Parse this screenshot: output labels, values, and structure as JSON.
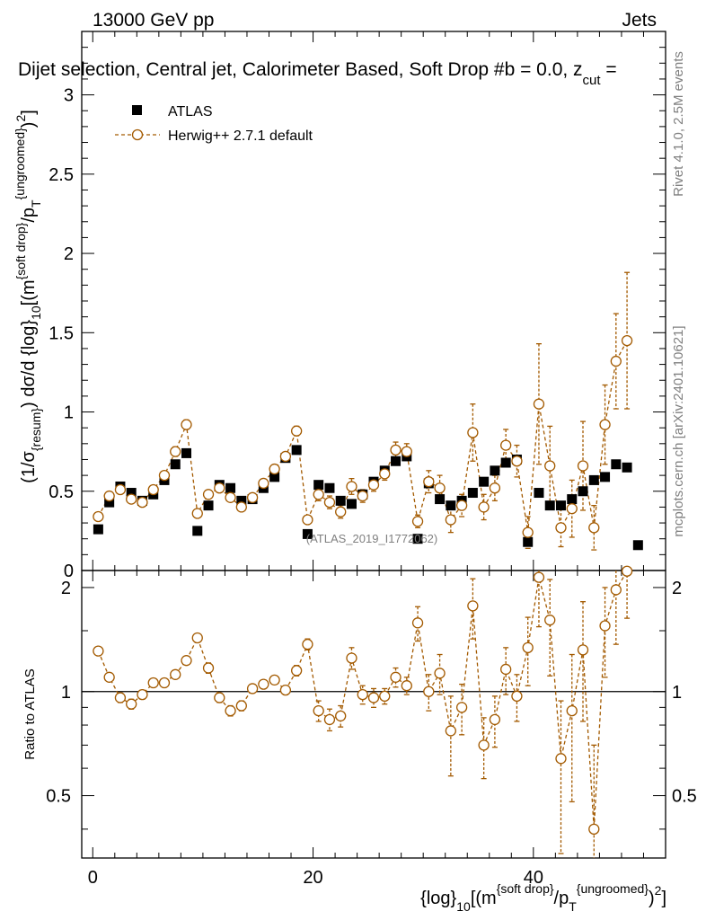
{
  "chart_data": {
    "type": "scatter",
    "header_left": "13000 GeV pp",
    "header_right": "Jets",
    "title": "Dijet selection, Central jet, Calorimeter Based, Soft Drop #b = 0.0, z",
    "title_sub": "cut",
    "title_tail": " =",
    "watermark": "(ATLAS_2019_I1772062)",
    "side_label_top": "Rivet 4.1.0,  2.5M events",
    "side_label_bottom": "mcplots.cern.ch [arXiv:2401.10621]",
    "xlabel": {
      "p1": "{log}",
      "s1": "10",
      "p2": "[(m",
      "s2": "{soft drop}",
      "p3": "/p",
      "s3": "T",
      "s4": "{ungroomed}",
      "p4": ")",
      "s5": "2",
      "p5": "]"
    },
    "ylabel": {
      "p1": "(1/σ",
      "s1": "{resum}",
      "p2": ") dσ/d {log}",
      "s2": "10",
      "p3": "[(m",
      "s3": "{soft drop}",
      "p4": "/p",
      "s4": "T",
      "s5": "{ungroomed}",
      "p5": ")",
      "s6": "2",
      "p6": "]"
    },
    "ratio_ylabel": "Ratio to ATLAS",
    "xlim": [
      -1,
      52
    ],
    "ylim_main": [
      0,
      3.4
    ],
    "ylim_ratio": [
      0.33,
      2.24
    ],
    "xticks": [
      0,
      20,
      40
    ],
    "xtick_labels": [
      "0",
      "20",
      "40"
    ],
    "yticks_main": [
      0,
      0.5,
      1,
      1.5,
      2,
      2.5,
      3
    ],
    "ytick_labels_main": [
      "0",
      "0.5",
      "1",
      "1.5",
      "2",
      "2.5",
      "3"
    ],
    "yticks_ratio": [
      0.5,
      1,
      2
    ],
    "ytick_labels_ratio": [
      "0.5",
      "1",
      "2"
    ],
    "legend": [
      {
        "label": "ATLAS",
        "color": "#000000",
        "marker": "square"
      },
      {
        "label": "Herwig++ 2.7.1 default",
        "color": "#a35a00",
        "marker": "open-circle-dashed"
      }
    ],
    "x": [
      0.5,
      1.5,
      2.5,
      3.5,
      4.5,
      5.5,
      6.5,
      7.5,
      8.5,
      9.5,
      10.5,
      11.5,
      12.5,
      13.5,
      14.5,
      15.5,
      16.5,
      17.5,
      18.5,
      19.5,
      20.5,
      21.5,
      22.5,
      23.5,
      24.5,
      25.5,
      26.5,
      27.5,
      28.5,
      29.5,
      30.5,
      31.5,
      32.5,
      33.5,
      34.5,
      35.5,
      36.5,
      37.5,
      38.5,
      39.5,
      40.5,
      41.5,
      42.5,
      43.5,
      44.5,
      45.5,
      46.5,
      47.5,
      48.5,
      49.5
    ],
    "series": [
      {
        "name": "ATLAS",
        "values": [
          0.26,
          0.43,
          0.53,
          0.49,
          0.44,
          0.48,
          0.57,
          0.67,
          0.74,
          0.25,
          0.41,
          0.54,
          0.52,
          0.44,
          0.45,
          0.52,
          0.59,
          0.71,
          0.76,
          0.23,
          0.54,
          0.52,
          0.44,
          0.42,
          0.48,
          0.56,
          0.63,
          0.69,
          0.72,
          0.2,
          0.55,
          0.45,
          0.41,
          0.44,
          0.49,
          0.56,
          0.63,
          0.68,
          0.7,
          0.18,
          0.49,
          0.41,
          0.41,
          0.45,
          0.5,
          0.57,
          0.59,
          0.67,
          0.65,
          0.16
        ]
      },
      {
        "name": "Herwig++ 2.7.1 default",
        "values": [
          0.34,
          0.47,
          0.51,
          0.45,
          0.43,
          0.51,
          0.6,
          0.75,
          0.92,
          0.36,
          0.48,
          0.52,
          0.46,
          0.4,
          0.46,
          0.55,
          0.64,
          0.72,
          0.88,
          0.32,
          0.48,
          0.43,
          0.37,
          0.53,
          0.47,
          0.54,
          0.61,
          0.76,
          0.75,
          0.31,
          0.56,
          0.52,
          0.32,
          0.41,
          0.87,
          0.4,
          0.52,
          0.79,
          0.69,
          0.24,
          1.05,
          0.66,
          0.27,
          0.39,
          0.66,
          0.27,
          0.92,
          1.32,
          1.45,
          null
        ],
        "errors": [
          0.02,
          0.02,
          0.02,
          0.02,
          0.02,
          0.02,
          0.02,
          0.03,
          0.03,
          0.02,
          0.02,
          0.02,
          0.02,
          0.02,
          0.02,
          0.02,
          0.02,
          0.02,
          0.03,
          0.02,
          0.04,
          0.04,
          0.04,
          0.05,
          0.04,
          0.04,
          0.04,
          0.05,
          0.05,
          0.04,
          0.07,
          0.08,
          0.08,
          0.07,
          0.18,
          0.08,
          0.08,
          0.1,
          0.1,
          0.1,
          0.38,
          0.25,
          0.12,
          0.18,
          0.28,
          0.14,
          0.25,
          0.3,
          0.43,
          null
        ],
        "ratio": [
          1.31,
          1.1,
          0.96,
          0.92,
          0.98,
          1.06,
          1.06,
          1.12,
          1.23,
          1.43,
          1.17,
          0.96,
          0.88,
          0.91,
          1.02,
          1.05,
          1.08,
          1.01,
          1.15,
          1.37,
          0.88,
          0.83,
          0.85,
          1.25,
          0.98,
          0.96,
          0.97,
          1.1,
          1.04,
          1.58,
          1.0,
          1.13,
          0.77,
          0.9,
          1.77,
          0.7,
          0.83,
          1.16,
          0.97,
          1.34,
          2.14,
          1.61,
          0.64,
          0.88,
          1.32,
          0.4,
          1.55,
          1.97,
          2.23,
          null
        ],
        "ratio_errors": [
          0.03,
          0.03,
          0.03,
          0.03,
          0.03,
          0.03,
          0.03,
          0.03,
          0.03,
          0.04,
          0.04,
          0.03,
          0.03,
          0.03,
          0.03,
          0.03,
          0.03,
          0.03,
          0.04,
          0.05,
          0.06,
          0.06,
          0.06,
          0.09,
          0.06,
          0.06,
          0.05,
          0.07,
          0.06,
          0.18,
          0.12,
          0.15,
          0.2,
          0.15,
          0.35,
          0.14,
          0.14,
          0.18,
          0.15,
          0.3,
          0.6,
          0.5,
          0.3,
          0.4,
          0.5,
          0.3,
          0.45,
          0.6,
          0.6,
          null
        ]
      }
    ]
  }
}
